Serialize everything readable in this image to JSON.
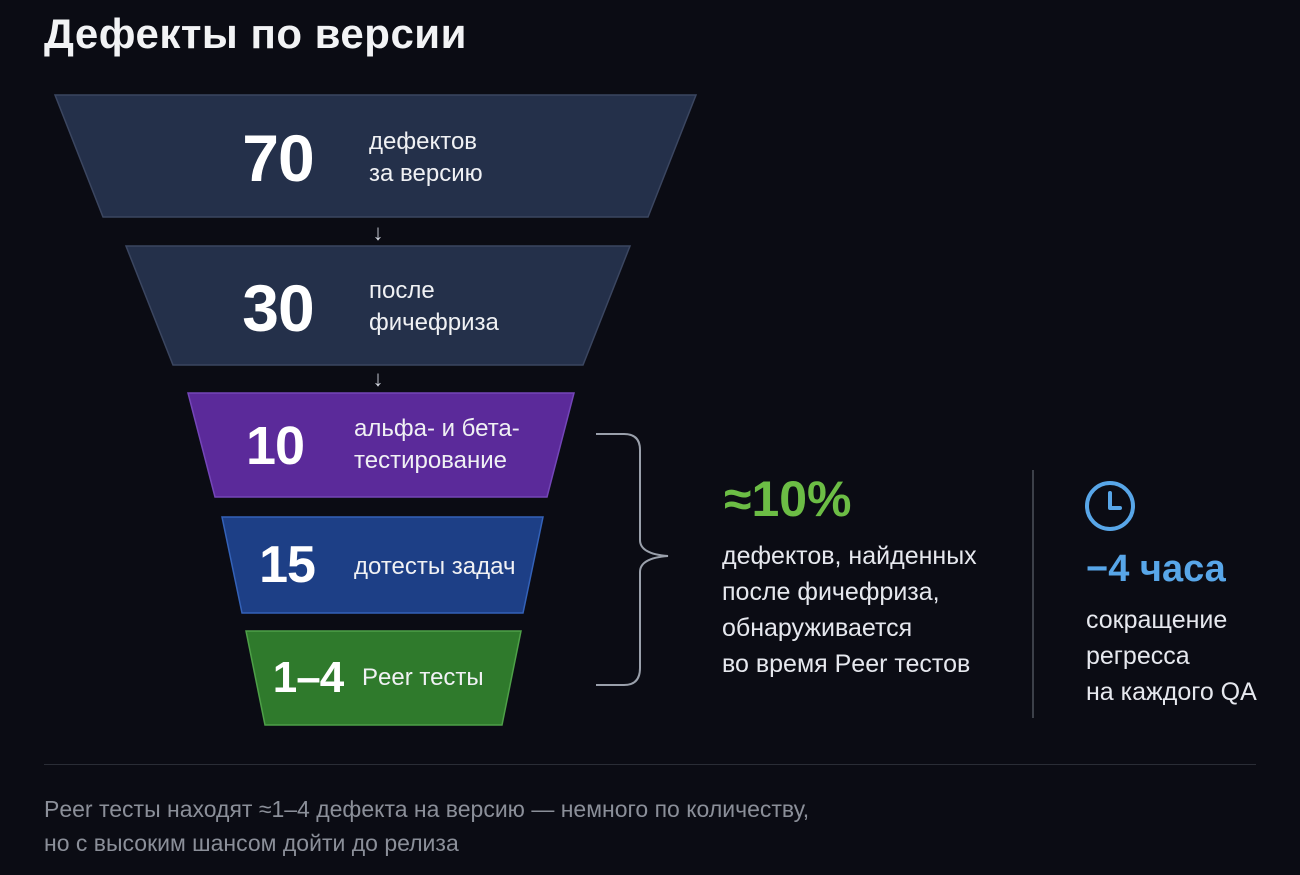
{
  "title": "Дефекты по версии",
  "stages": [
    {
      "value": "70",
      "label": "дефектов\nза версию",
      "color": "#24304a"
    },
    {
      "value": "30",
      "label": "после\nфичефриза",
      "color": "#24304a"
    },
    {
      "value": "10",
      "label": "альфа- и бета-\nтестирование",
      "color": "#5b2a9a"
    },
    {
      "value": "15",
      "label": "дотесты задач",
      "color": "#1d3f86"
    },
    {
      "value": "1–4",
      "label": "Peer тесты",
      "color": "#2f7a2c"
    }
  ],
  "arrow_glyph": "↓",
  "metric_peer_share": {
    "value": "≈10%",
    "description": "дефектов, найденных\nпосле фичефриза,\nобнаруживается\nво время Peer тестов",
    "color": "#6cbd45"
  },
  "metric_time_saved": {
    "icon": "clock-icon",
    "value": "−4 часа",
    "description": "сокращение\nрегресса\nна каждого QA",
    "color": "#58a6e8"
  },
  "footnote": "Peer тесты находят ≈1–4 дефекта на версию — немного по количеству,\nно с высоким шансом дойти до релиза"
}
